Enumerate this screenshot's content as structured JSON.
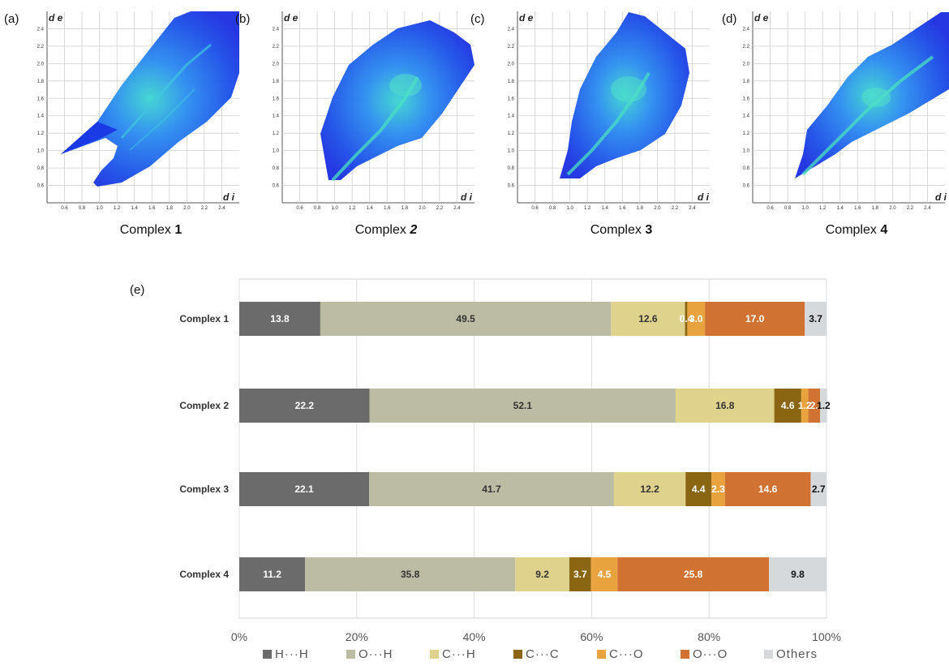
{
  "chart_data": [
    {
      "type": "scatter",
      "panel": "(a)",
      "caption_prefix": "Complex ",
      "caption_number": "1",
      "ylabel": "d e",
      "xlabel": "d i",
      "x_ticks": [
        "0.6",
        "0.8",
        "1.0",
        "1.2",
        "1.4",
        "1.6",
        "1.8",
        "2.0",
        "2.2",
        "2.4"
      ],
      "y_ticks": [
        "0.6",
        "0.8",
        "1.0",
        "1.2",
        "1.4",
        "1.6",
        "1.8",
        "2.0",
        "2.2",
        "2.4"
      ],
      "xlim": [
        0.4,
        2.6
      ],
      "ylim": [
        0.4,
        2.6
      ]
    },
    {
      "type": "scatter",
      "panel": "(b)",
      "caption_prefix": "Complex ",
      "caption_number": "2",
      "ylabel": "d e",
      "xlabel": "d i",
      "x_ticks": [
        "0.6",
        "0.8",
        "1.0",
        "1.2",
        "1.4",
        "1.6",
        "1.8",
        "2.0",
        "2.2",
        "2.4"
      ],
      "y_ticks": [
        "0.6",
        "0.8",
        "1.0",
        "1.2",
        "1.4",
        "1.6",
        "1.8",
        "2.0",
        "2.2",
        "2.4"
      ],
      "xlim": [
        0.4,
        2.6
      ],
      "ylim": [
        0.4,
        2.6
      ]
    },
    {
      "type": "scatter",
      "panel": "(c)",
      "caption_prefix": "Complex ",
      "caption_number": "3",
      "ylabel": "d e",
      "xlabel": "d i",
      "x_ticks": [
        "0.6",
        "0.8",
        "1.0",
        "1.2",
        "1.4",
        "1.6",
        "1.8",
        "2.0",
        "2.2",
        "2.4"
      ],
      "y_ticks": [
        "0.6",
        "0.8",
        "1.0",
        "1.2",
        "1.4",
        "1.6",
        "1.8",
        "2.0",
        "2.2",
        "2.4"
      ],
      "xlim": [
        0.4,
        2.6
      ],
      "ylim": [
        0.4,
        2.6
      ]
    },
    {
      "type": "scatter",
      "panel": "(d)",
      "caption_prefix": "Complex ",
      "caption_number": "4",
      "ylabel": "d e",
      "xlabel": "d i",
      "x_ticks": [
        "0.6",
        "0.8",
        "1.0",
        "1.2",
        "1.4",
        "1.6",
        "1.8",
        "2.0",
        "2.2",
        "2.4"
      ],
      "y_ticks": [
        "0.6",
        "0.8",
        "1.0",
        "1.2",
        "1.4",
        "1.6",
        "1.8",
        "2.0",
        "2.2",
        "2.4"
      ],
      "xlim": [
        0.4,
        2.6
      ],
      "ylim": [
        0.4,
        2.6
      ]
    },
    {
      "type": "bar",
      "orientation": "horizontal-stacked",
      "panel": "(e)",
      "categories": [
        "Complex 1",
        "Complex 2",
        "Complex 3",
        "Complex 4"
      ],
      "series": [
        {
          "name": "H···H",
          "color": "#6b6b6b",
          "label_color": "#ffffff",
          "values": [
            13.8,
            22.2,
            22.1,
            11.2
          ],
          "labels": [
            "13.8",
            "22.2",
            "22.1",
            "11.2"
          ]
        },
        {
          "name": "O···H",
          "color": "#bcbca4",
          "label_color": "#333333",
          "values": [
            49.5,
            52.1,
            41.7,
            35.8
          ],
          "labels": [
            "49.5",
            "52.1",
            "41.7",
            "35.8"
          ]
        },
        {
          "name": "C···H",
          "color": "#dfd28c",
          "label_color": "#333333",
          "values": [
            12.6,
            16.8,
            12.2,
            9.2
          ],
          "labels": [
            "12.6",
            "16.8",
            "12.2",
            "9.2"
          ]
        },
        {
          "name": "C···C",
          "color": "#8a6512",
          "label_color": "#ffffff",
          "values": [
            0.4,
            4.6,
            4.4,
            3.7
          ],
          "labels": [
            "0.4",
            "4.6",
            "4.4",
            "3.7"
          ]
        },
        {
          "name": "C···O",
          "color": "#e8a23e",
          "label_color": "#ffffff",
          "values": [
            3.0,
            1.2,
            2.3,
            4.5
          ],
          "labels": [
            "3.0",
            "1.2",
            "2.3",
            "4.5"
          ]
        },
        {
          "name": "O···O",
          "color": "#d07232",
          "label_color": "#ffffff",
          "values": [
            17.0,
            2.0,
            14.6,
            25.8
          ],
          "labels": [
            "17.0",
            "2.",
            "14.6",
            "25.8"
          ]
        },
        {
          "name": "Others",
          "color": "#d6d9dc",
          "label_color": "#111111",
          "values": [
            3.7,
            1.2,
            2.7,
            9.8
          ],
          "labels": [
            "3.7",
            "1.2",
            "2.7",
            "9.8"
          ]
        }
      ],
      "x_ticks": [
        "0%",
        "20%",
        "40%",
        "60%",
        "80%",
        "100%"
      ],
      "xlim": [
        0,
        100
      ],
      "grid": true,
      "legend_position": "bottom"
    }
  ]
}
